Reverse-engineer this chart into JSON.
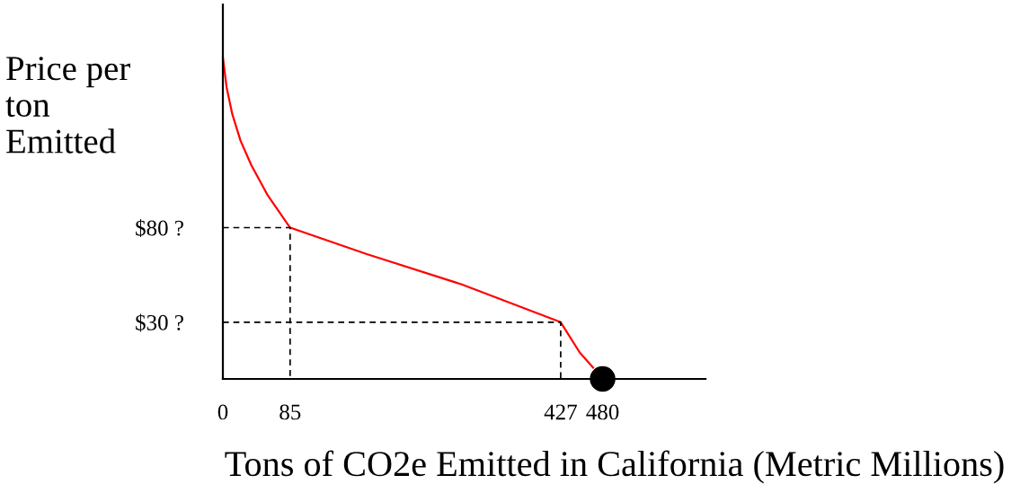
{
  "chart_data": {
    "type": "line",
    "xlabel": "Tons of CO2e Emitted in California (Metric Millions)",
    "ylabel": "Price per\nton\nEmitted",
    "xlim": [
      0,
      610
    ],
    "ylim": [
      0,
      198
    ],
    "xticks": [
      0,
      85,
      427,
      480
    ],
    "yticks": [
      {
        "value": 30,
        "label": "$30 ?"
      },
      {
        "value": 80,
        "label": "$80 ?"
      }
    ],
    "grid": false,
    "series": [
      {
        "color": "#ff0000",
        "line_style": "solid",
        "marker": "none",
        "x": [
          0,
          4.8,
          11.9,
          22.3,
          36,
          56.8,
          85,
          182,
          302,
          427,
          451,
          468
        ],
        "values": [
          170,
          154,
          140,
          126,
          113,
          97,
          80,
          66,
          50,
          30,
          14,
          6
        ]
      },
      {
        "color": "#000000",
        "line_style": "dashed",
        "marker": "none",
        "x": [
          0,
          85,
          85
        ],
        "values": [
          80,
          80,
          0
        ]
      },
      {
        "color": "#000000",
        "line_style": "dashed",
        "marker": "none",
        "x": [
          0,
          427,
          427
        ],
        "values": [
          30,
          30,
          0
        ]
      },
      {
        "type": "scatter",
        "color": "#000000",
        "marker": "circle",
        "x": [
          480
        ],
        "values": [
          0
        ]
      }
    ]
  }
}
